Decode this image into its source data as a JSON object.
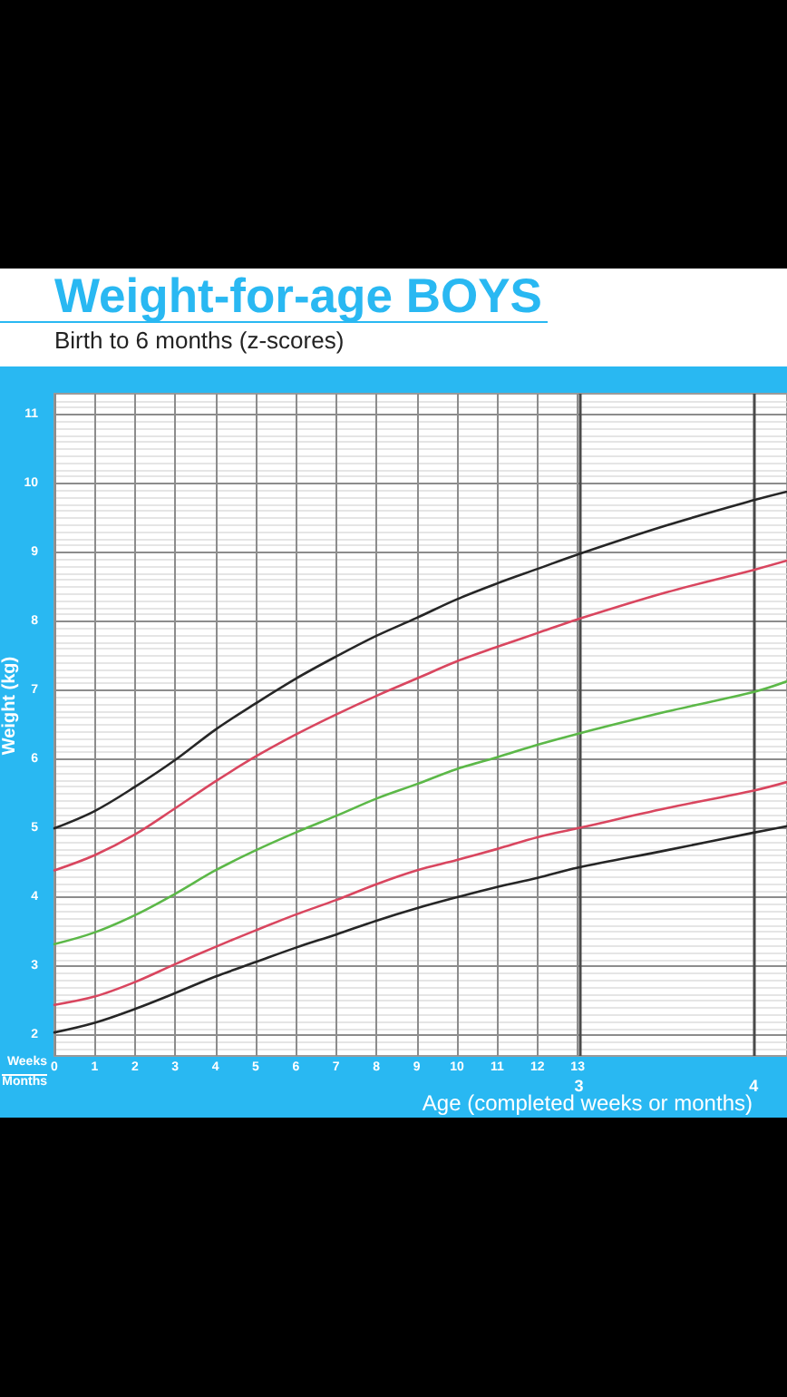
{
  "chart_data": {
    "type": "line",
    "title": "Weight-for-age BOYS",
    "subtitle": "Birth to 6 months (z-scores)",
    "xlabel": "Age (completed weeks or months)",
    "ylabel": "Weight (kg)",
    "annotations": [
      "Weeks",
      "Months"
    ],
    "x": [
      0,
      1,
      2,
      3,
      4,
      5,
      6,
      7,
      8,
      9,
      10,
      11,
      12,
      13,
      15.2,
      17.4,
      18.2
    ],
    "xlim": [
      0,
      18.2
    ],
    "xticks": [
      0,
      1,
      2,
      3,
      4,
      5,
      6,
      7,
      8,
      9,
      10,
      11,
      12,
      13
    ],
    "x2lim": [
      0,
      4.19
    ],
    "x2ticks": [
      3,
      4
    ],
    "ylim": [
      1.7,
      11.3
    ],
    "yticks": [
      2,
      3,
      4,
      5,
      6,
      7,
      8,
      9,
      10,
      11
    ],
    "grid": true,
    "marker": "none",
    "series": [
      {
        "color": "#262626",
        "values": [
          5.0,
          5.25,
          5.6,
          5.99,
          6.43,
          6.81,
          7.17,
          7.49,
          7.79,
          8.05,
          8.32,
          8.55,
          8.76,
          8.97,
          9.39,
          9.76,
          9.88
        ]
      },
      {
        "color": "#d9465f",
        "values": [
          4.39,
          4.61,
          4.91,
          5.29,
          5.68,
          6.04,
          6.36,
          6.65,
          6.92,
          7.17,
          7.42,
          7.63,
          7.83,
          8.03,
          8.42,
          8.75,
          8.88
        ]
      },
      {
        "color": "#5cb848",
        "values": [
          3.32,
          3.49,
          3.74,
          4.05,
          4.39,
          4.68,
          4.94,
          5.18,
          5.43,
          5.64,
          5.86,
          6.03,
          6.21,
          6.37,
          6.69,
          6.98,
          7.13
        ]
      },
      {
        "color": "#d9465f",
        "values": [
          2.44,
          2.56,
          2.77,
          3.03,
          3.28,
          3.52,
          3.75,
          3.96,
          4.19,
          4.39,
          4.54,
          4.7,
          4.87,
          5.0,
          5.29,
          5.55,
          5.67
        ]
      },
      {
        "color": "#262626",
        "values": [
          2.04,
          2.18,
          2.38,
          2.61,
          2.85,
          3.06,
          3.27,
          3.46,
          3.66,
          3.84,
          4.0,
          4.15,
          4.28,
          4.43,
          4.68,
          4.94,
          5.03
        ]
      }
    ]
  }
}
